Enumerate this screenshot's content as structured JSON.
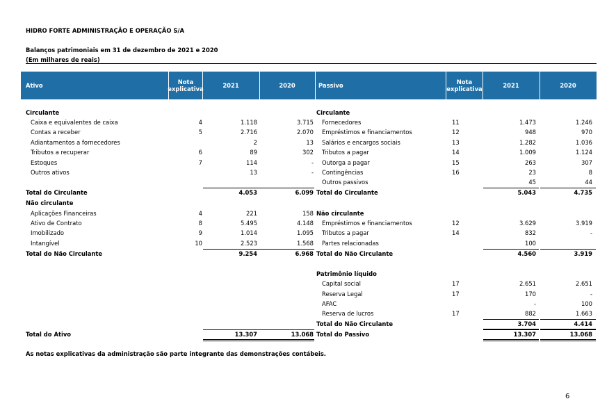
{
  "company": "HIDRO FORTE ADMINISTRAÇÃO E OPERAÇÃO S/A",
  "title": "Balanços patrimoniais em 31 de dezembro de 2021 e 2020",
  "unit_note": "(Em milhares de reais)",
  "header": [
    "Ativo",
    "Nota explicativa",
    "2021",
    "2020",
    "Passivo",
    "Nota explicativa",
    "2021",
    "2020"
  ],
  "rows": [
    [
      "Circulante",
      null,
      null,
      null,
      "Circulante",
      null,
      null,
      null
    ],
    [
      "Caixa e equivalentes de caixa",
      "4",
      "1.118",
      "3.715",
      "Fornecedores",
      "11",
      "1.473",
      "1.246"
    ],
    [
      "Contas a receber",
      "5",
      "2.716",
      "2.070",
      "Empréstimos e financiamentos",
      "12",
      "948",
      "970"
    ],
    [
      "Adiantamentos a fornecedores",
      null,
      "2",
      "13",
      "Salários e encargos sociais",
      "13",
      "1.282",
      "1.036"
    ],
    [
      "Tributos a recuperar",
      "6",
      "89",
      "302",
      "Tributos a pagar",
      "14",
      "1.009",
      "1.124"
    ],
    [
      "Estoques",
      "7",
      "114",
      "-",
      "Outorga a pagar",
      "15",
      "263",
      "307"
    ],
    [
      "Outros ativos",
      null,
      "13",
      "-",
      "Contingências",
      "16",
      "23",
      "8"
    ],
    [
      null,
      null,
      null,
      null,
      "Outros passivos",
      null,
      "45",
      "44"
    ],
    [
      "Total do Circulante",
      null,
      "4.053",
      "6.099",
      "Total do Circulante",
      null,
      "5.043",
      "4.735"
    ],
    [
      "Não circulante",
      null,
      null,
      null,
      null,
      null,
      null,
      null
    ],
    [
      "Aplicações Financeiras",
      "4",
      "221",
      "158",
      "Não circulante",
      null,
      null,
      null
    ],
    [
      "Ativo de Contrato",
      "8",
      "5.495",
      "4.148",
      "Empréstimos e financiamentos",
      "12",
      "3.629",
      "3.919"
    ],
    [
      "Imobilizado",
      "9",
      "1.014",
      "1.095",
      "Tributos a pagar",
      "14",
      "832",
      "-"
    ],
    [
      "Intangível",
      "10",
      "2.523",
      "1.568",
      "Partes relacionadas",
      null,
      "100",
      null
    ],
    [
      "Total do Não Circulante",
      null,
      "9.254",
      "6.968",
      "Total do Não Circulante",
      null,
      "4.560",
      "3.919"
    ],
    [
      null,
      null,
      null,
      null,
      "Patrimônio líquido",
      null,
      null,
      null
    ],
    [
      null,
      null,
      null,
      null,
      "Capital social",
      "17",
      "2.651",
      "2.651"
    ],
    [
      null,
      null,
      null,
      null,
      "Reserva Legal",
      "17",
      "170",
      "-"
    ],
    [
      null,
      null,
      null,
      null,
      "AFAC",
      null,
      "-",
      "100"
    ],
    [
      null,
      null,
      null,
      null,
      "Reserva de lucros",
      "17",
      "882",
      "1.663"
    ],
    [
      null,
      null,
      null,
      null,
      "Total do Não Circulante",
      null,
      "3.704",
      "4.414"
    ],
    [
      "Total do Ativo",
      null,
      "13.307",
      "13.068",
      "Total do Passivo",
      null,
      "13.307",
      "13.068"
    ]
  ],
  "footnote": "As notas explicativas da administração são parte integrante das demonstrações contábeis.",
  "page_number": "6"
}
